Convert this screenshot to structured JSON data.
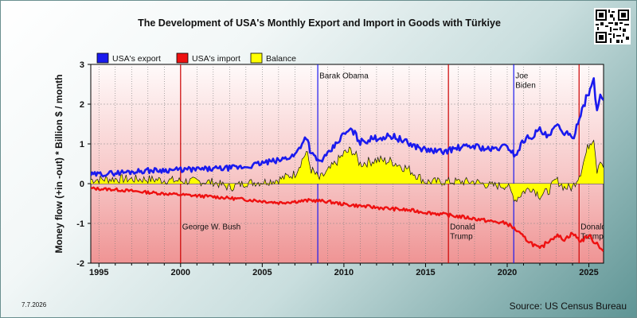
{
  "title": "The Development of USA's Monthly Export and Import in Goods with Türkiye",
  "date": "7.7.2026",
  "source": "Source: US Census Bureau",
  "colors": {
    "export": "#1a1aee",
    "import": "#ee1111",
    "balance": "#ffff00",
    "plot_top": "#fffafa",
    "plot_bottom": "#ef9494"
  },
  "chart_data": {
    "type": "line",
    "title": "The Development of USA's Monthly Export and Import in Goods with Türkiye",
    "ylabel": "Money flow (+in -out) * Billion $ / month",
    "xlabel": "",
    "xlim": [
      1994.5,
      2025.9
    ],
    "ylim": [
      -2,
      3
    ],
    "x_ticks": [
      1995,
      2000,
      2005,
      2010,
      2015,
      2020,
      2025
    ],
    "y_ticks": [
      -2,
      -1,
      0,
      1,
      2,
      3
    ],
    "grid": true,
    "legend_position": "top-left",
    "series": [
      {
        "name": "USA's export",
        "color": "#1a1aee",
        "x": [
          1994.5,
          1996,
          1998,
          2000,
          2002,
          2004,
          2005,
          2006,
          2007,
          2007.7,
          2008,
          2008.5,
          2009,
          2010,
          2010.5,
          2011,
          2012,
          2013,
          2014,
          2015,
          2016,
          2017,
          2018,
          2019,
          2020,
          2020.5,
          2021,
          2021.5,
          2022,
          2022.5,
          2023,
          2023.5,
          2024,
          2024.5,
          2025,
          2025.3,
          2025.5,
          2025.7,
          2025.9
        ],
        "values": [
          0.22,
          0.27,
          0.33,
          0.35,
          0.37,
          0.42,
          0.52,
          0.58,
          0.72,
          1.2,
          0.75,
          0.55,
          0.72,
          1.25,
          1.35,
          1.05,
          1.15,
          1.2,
          1.0,
          0.85,
          0.8,
          0.9,
          0.95,
          0.85,
          0.95,
          0.7,
          1.1,
          1.2,
          1.35,
          1.15,
          1.45,
          1.3,
          1.1,
          1.8,
          2.3,
          2.55,
          1.85,
          2.2,
          2.1
        ]
      },
      {
        "name": "USA's import",
        "color": "#ee1111",
        "x": [
          1994.5,
          1996,
          1998,
          2000,
          2002,
          2004,
          2006,
          2008,
          2009,
          2010,
          2012,
          2014,
          2016,
          2018,
          2019,
          2020,
          2020.5,
          2021,
          2021.5,
          2022,
          2022.5,
          2023,
          2023.5,
          2024,
          2024.5,
          2025,
          2025.3,
          2025.5,
          2025.9
        ],
        "values": [
          -0.12,
          -0.15,
          -0.22,
          -0.28,
          -0.33,
          -0.4,
          -0.48,
          -0.42,
          -0.45,
          -0.52,
          -0.6,
          -0.67,
          -0.77,
          -0.88,
          -0.95,
          -1.0,
          -1.15,
          -1.35,
          -1.5,
          -1.65,
          -1.45,
          -1.3,
          -1.4,
          -1.25,
          -1.45,
          -1.3,
          -1.45,
          -1.5,
          -1.7
        ]
      },
      {
        "name": "Balance",
        "color": "#ffff00",
        "x": [
          1994.5,
          1996,
          1998,
          2000,
          2002,
          2003,
          2004,
          2005,
          2006,
          2007,
          2007.7,
          2008,
          2008.5,
          2009,
          2010,
          2010.5,
          2011,
          2012,
          2013,
          2014,
          2015,
          2016,
          2017,
          2018,
          2019,
          2020,
          2020.5,
          2021,
          2021.5,
          2022,
          2022.5,
          2023,
          2023.5,
          2024,
          2024.5,
          2025,
          2025.3,
          2025.5,
          2025.7,
          2025.9
        ],
        "values": [
          0.1,
          0.12,
          0.11,
          0.07,
          0.04,
          -0.1,
          0.02,
          0.04,
          0.1,
          0.25,
          0.8,
          0.35,
          0.12,
          0.3,
          0.75,
          0.85,
          0.5,
          0.6,
          0.55,
          0.35,
          0.05,
          0.05,
          0.05,
          0.05,
          -0.05,
          -0.05,
          -0.4,
          -0.2,
          -0.1,
          -0.3,
          -0.2,
          0.1,
          -0.1,
          -0.1,
          0.3,
          1.0,
          1.2,
          0.35,
          0.65,
          0.4
        ]
      }
    ],
    "events": [
      {
        "x": 2000.0,
        "color": "#cc0000",
        "label": "George W. Bush",
        "label_y": -1.15
      },
      {
        "x": 2008.4,
        "color": "#1a1aee",
        "label": "Barak Obama",
        "label_y": 2.65
      },
      {
        "x": 2016.4,
        "color": "#cc0000",
        "label": "Donald Trump",
        "label_y": -1.15
      },
      {
        "x": 2020.4,
        "color": "#1a1aee",
        "label": "Joe Biden",
        "label_y": 2.65
      },
      {
        "x": 2024.4,
        "color": "#cc0000",
        "label": "Donald Trump",
        "label_y": -1.15
      }
    ]
  }
}
